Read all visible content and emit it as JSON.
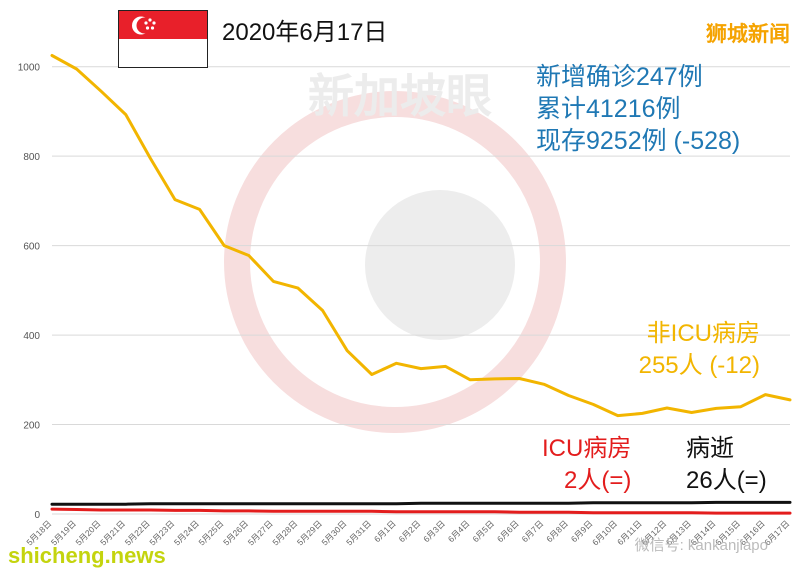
{
  "header": {
    "date": "2020年6月17日",
    "brand": "狮城新闻",
    "stats": [
      "新增确诊247例",
      "累计41216例",
      "现存9252例 (-528)"
    ]
  },
  "watermark": {
    "text": "新加坡眼",
    "wechat": "微信号: kankanjiapo",
    "site": "shicheng.news"
  },
  "annotations": {
    "non_icu": [
      "非ICU病房",
      "255人 (-12)"
    ],
    "icu": [
      "ICU病房",
      "2人(=)"
    ],
    "deaths": [
      "病逝",
      "26人(=)"
    ]
  },
  "colors": {
    "non_icu": "#f2b500",
    "icu": "#e31d1d",
    "deaths": "#111111",
    "stats": "#1f78b4",
    "brand": "#f5a300",
    "flag_red": "#e8202a"
  },
  "chart_data": {
    "type": "line",
    "categories": [
      "5月18日",
      "5月19日",
      "5月20日",
      "5月21日",
      "5月22日",
      "5月23日",
      "5月24日",
      "5月25日",
      "5月26日",
      "5月27日",
      "5月28日",
      "5月29日",
      "5月30日",
      "5月31日",
      "6月1日",
      "6月2日",
      "6月3日",
      "6月4日",
      "6月5日",
      "6月6日",
      "6月7日",
      "6月8日",
      "6月9日",
      "6月10日",
      "6月11日",
      "6月12日",
      "6月13日",
      "6月14日",
      "6月15日",
      "6月16日",
      "6月17日"
    ],
    "ylim": [
      0,
      1100
    ],
    "yticks": [
      0,
      200,
      400,
      600,
      800,
      1000
    ],
    "grid": true,
    "series": [
      {
        "name": "非ICU病房",
        "color": "#f2b500",
        "values": [
          1025,
          995,
          945,
          893,
          795,
          703,
          681,
          600,
          578,
          520,
          505,
          455,
          365,
          312,
          337,
          325,
          330,
          300,
          302,
          303,
          290,
          265,
          245,
          220,
          225,
          237,
          227,
          236,
          240,
          267,
          255
        ]
      },
      {
        "name": "ICU病房",
        "color": "#e31d1d",
        "values": [
          11,
          10,
          9,
          9,
          9,
          8,
          8,
          7,
          7,
          6,
          6,
          6,
          6,
          6,
          5,
          5,
          5,
          5,
          5,
          4,
          4,
          4,
          3,
          3,
          3,
          3,
          3,
          2,
          2,
          2,
          2
        ]
      },
      {
        "name": "病逝",
        "color": "#111111",
        "values": [
          22,
          22,
          22,
          22,
          23,
          23,
          23,
          23,
          23,
          23,
          23,
          23,
          23,
          23,
          23,
          24,
          24,
          24,
          24,
          24,
          24,
          24,
          25,
          25,
          25,
          25,
          25,
          26,
          26,
          26,
          26
        ]
      }
    ]
  }
}
